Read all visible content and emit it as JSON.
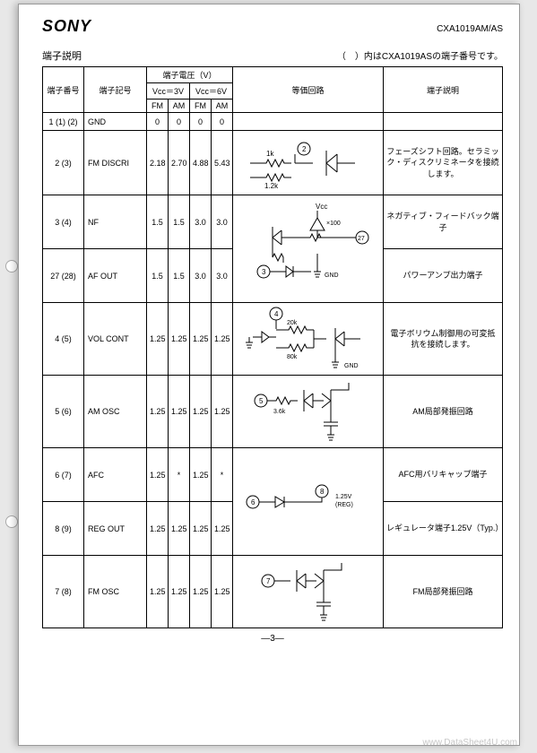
{
  "watermark_tl": "www.Data",
  "watermark_br": "www.DataSheet4U.com",
  "brand": "SONY",
  "part_number": "CXA1019AM/AS",
  "section_title": "端子説明",
  "note": "（　）内はCXA1019ASの端子番号です。",
  "th": {
    "pin": "端子番号",
    "symbol": "端子記号",
    "voltage": "端子電圧（V）",
    "vcc3": "Vcc＝3V",
    "vcc6": "Vcc＝6V",
    "fm": "FM",
    "am": "AM",
    "circuit": "等価回路",
    "desc": "端子説明"
  },
  "rows": [
    {
      "pin": "1 (1) (2)",
      "sym": "GND",
      "v": [
        "0",
        "0",
        "0",
        "0"
      ],
      "circ": "blank",
      "desc": "",
      "h": "sm"
    },
    {
      "pin": "2 (3)",
      "sym": "FM DISCRI",
      "v": [
        "2.18",
        "2.70",
        "4.88",
        "5.43"
      ],
      "circ": "discri",
      "desc": "フェーズシフト回路。セラミック・ディスクリミネータを接続します。",
      "h": "tall"
    },
    {
      "pin": "3 (4)",
      "sym": "NF",
      "v": [
        "1.5",
        "1.5",
        "3.0",
        "3.0"
      ],
      "circ": "nf_top",
      "desc": "ネガティブ・フィードバック端子",
      "h": "med",
      "merge_circ": true
    },
    {
      "pin": "27 (28)",
      "sym": "AF OUT",
      "v": [
        "1.5",
        "1.5",
        "3.0",
        "3.0"
      ],
      "circ": "nf_bot",
      "desc": "パワーアンプ出力端子",
      "h": "med",
      "skip_circ": true
    },
    {
      "pin": "4 (5)",
      "sym": "VOL CONT",
      "v": [
        "1.25",
        "1.25",
        "1.25",
        "1.25"
      ],
      "circ": "vol",
      "desc": "電子ボリウム制御用の可変抵抗を接続します。",
      "h": "tall"
    },
    {
      "pin": "5 (6)",
      "sym": "AM OSC",
      "v": [
        "1.25",
        "1.25",
        "1.25",
        "1.25"
      ],
      "circ": "amosc",
      "desc": "AM局部発振回路",
      "h": "tall"
    },
    {
      "pin": "6 (7)",
      "sym": "AFC",
      "v": [
        "1.25",
        "*",
        "1.25",
        "*"
      ],
      "circ": "afc_top",
      "desc": "AFC用バリキャップ端子",
      "h": "med",
      "merge_circ": true
    },
    {
      "pin": "8 (9)",
      "sym": "REG OUT",
      "v": [
        "1.25",
        "1.25",
        "1.25",
        "1.25"
      ],
      "circ": "afc_bot",
      "desc": "レギュレータ端子1.25V（Typ.）",
      "h": "med",
      "skip_circ": true
    },
    {
      "pin": "7 (8)",
      "sym": "FM OSC",
      "v": [
        "1.25",
        "1.25",
        "1.25",
        "1.25"
      ],
      "circ": "fmosc",
      "desc": "FM局部発振回路",
      "h": "tall"
    }
  ],
  "page_number": "―3―",
  "circ_labels": {
    "r1k": "1k",
    "r12k": "1.2k",
    "r20k": "20k",
    "r80k": "80k",
    "r36k": "3.6k",
    "x100": "×100",
    "vcc": "Vcc",
    "gnd": "GND",
    "reg": "1.25V\n(REG)"
  }
}
